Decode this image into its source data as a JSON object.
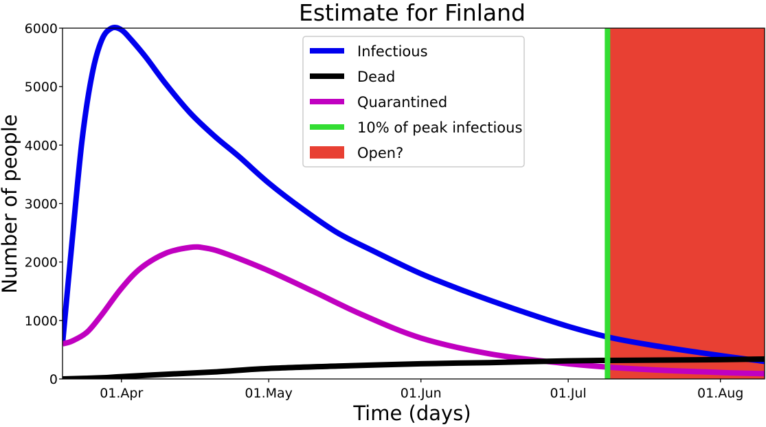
{
  "chart_data": {
    "type": "line",
    "title": "Estimate for Finland",
    "xlabel": "Time (days)",
    "ylabel": "Number of people",
    "xlim": [
      "2020-03-20",
      "2020-08-10"
    ],
    "ylim": [
      0,
      6000
    ],
    "x_ticks": [
      {
        "date": "2020-04-01",
        "label": "01.Apr"
      },
      {
        "date": "2020-05-01",
        "label": "01.May"
      },
      {
        "date": "2020-06-01",
        "label": "01.Jun"
      },
      {
        "date": "2020-07-01",
        "label": "01.Jul"
      },
      {
        "date": "2020-08-01",
        "label": "01.Aug"
      }
    ],
    "y_ticks": [
      0,
      1000,
      2000,
      3000,
      4000,
      5000,
      6000
    ],
    "grid": false,
    "legend_position": "top-center",
    "series": [
      {
        "name": "Infectious",
        "color": "#0000ee",
        "x": [
          "2020-03-20",
          "2020-03-22",
          "2020-03-24",
          "2020-03-26",
          "2020-03-28",
          "2020-03-30",
          "2020-04-01",
          "2020-04-03",
          "2020-04-06",
          "2020-04-10",
          "2020-04-15",
          "2020-04-20",
          "2020-04-25",
          "2020-05-01",
          "2020-05-08",
          "2020-05-15",
          "2020-05-22",
          "2020-06-01",
          "2020-06-10",
          "2020-06-20",
          "2020-07-01",
          "2020-07-10",
          "2020-07-20",
          "2020-08-01",
          "2020-08-10"
        ],
        "values": [
          600,
          2400,
          4100,
          5200,
          5800,
          6000,
          5970,
          5800,
          5500,
          5050,
          4550,
          4150,
          3800,
          3350,
          2900,
          2500,
          2200,
          1800,
          1500,
          1200,
          900,
          700,
          550,
          400,
          300
        ]
      },
      {
        "name": "Dead",
        "color": "#000000",
        "x": [
          "2020-03-20",
          "2020-03-28",
          "2020-04-01",
          "2020-04-10",
          "2020-04-20",
          "2020-05-01",
          "2020-05-15",
          "2020-06-01",
          "2020-06-15",
          "2020-07-01",
          "2020-07-15",
          "2020-08-01",
          "2020-08-10"
        ],
        "values": [
          0,
          20,
          40,
          80,
          120,
          180,
          220,
          260,
          280,
          310,
          320,
          330,
          340
        ]
      },
      {
        "name": "Quarantined",
        "color": "#c000c0",
        "x": [
          "2020-03-20",
          "2020-03-22",
          "2020-03-25",
          "2020-03-28",
          "2020-04-01",
          "2020-04-05",
          "2020-04-10",
          "2020-04-15",
          "2020-04-18",
          "2020-04-22",
          "2020-05-01",
          "2020-05-10",
          "2020-05-20",
          "2020-06-01",
          "2020-06-15",
          "2020-07-01",
          "2020-07-15",
          "2020-08-01",
          "2020-08-10"
        ],
        "values": [
          600,
          650,
          800,
          1100,
          1550,
          1900,
          2150,
          2250,
          2240,
          2150,
          1850,
          1500,
          1100,
          700,
          430,
          260,
          170,
          110,
          90
        ]
      },
      {
        "name": "10% of peak infectious",
        "color": "#33dd33",
        "type": "vline",
        "x_value": "2020-07-09"
      },
      {
        "name": "Open?",
        "color": "#e84033",
        "type": "vspan",
        "x_start": "2020-07-09",
        "x_end": "2020-08-10"
      }
    ]
  }
}
